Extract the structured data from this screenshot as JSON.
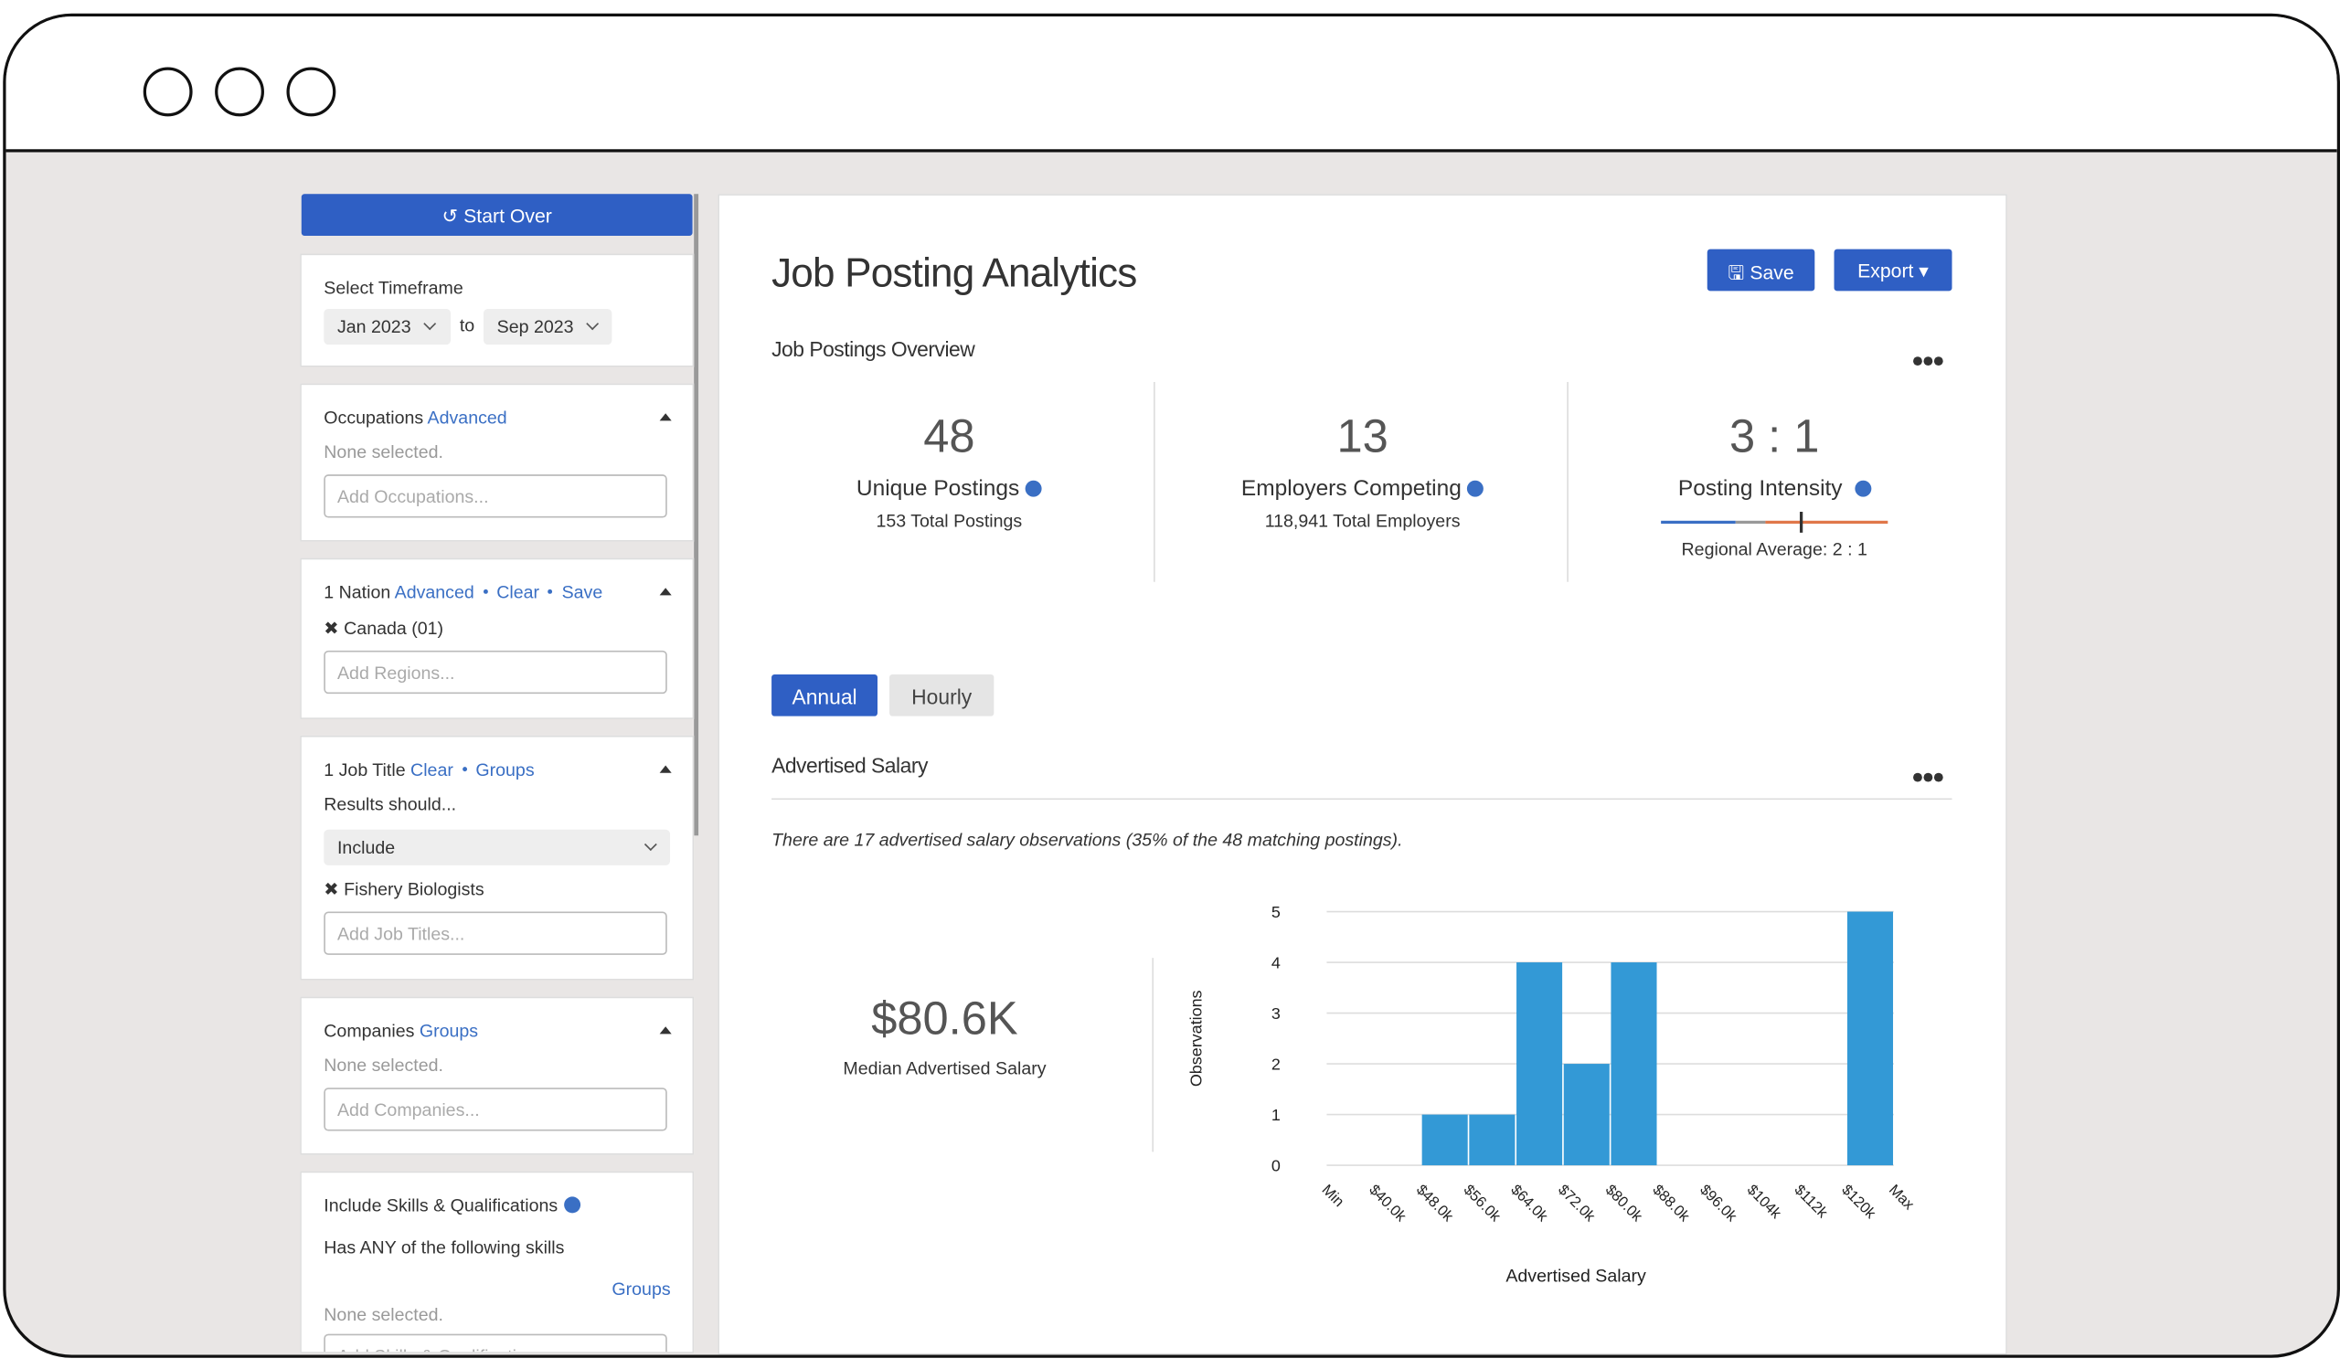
{
  "sidebar": {
    "start_over": "Start Over",
    "timeframe": {
      "label": "Select Timeframe",
      "from": "Jan 2023",
      "to_word": "to",
      "to": "Sep 2023"
    },
    "occupations": {
      "title": "Occupations",
      "links": [
        "Advanced"
      ],
      "status": "None selected.",
      "placeholder": "Add Occupations..."
    },
    "nation": {
      "title": "1 Nation",
      "links": [
        "Advanced",
        "Clear",
        "Save"
      ],
      "item": "Canada (01)",
      "placeholder": "Add Regions..."
    },
    "job_title": {
      "title": "1 Job Title",
      "links": [
        "Clear",
        "Groups"
      ],
      "hint": "Results should...",
      "select": "Include",
      "item": "Fishery Biologists",
      "placeholder": "Add Job Titles..."
    },
    "companies": {
      "title": "Companies",
      "links": [
        "Groups"
      ],
      "status": "None selected.",
      "placeholder": "Add Companies..."
    },
    "skills": {
      "title": "Include Skills & Qualifications",
      "hint": "Has ANY of the following skills",
      "link": "Groups",
      "status": "None selected.",
      "placeholder": "Add Skills & Qualifications..."
    }
  },
  "main": {
    "title": "Job Posting Analytics",
    "buttons": [
      "Save",
      "Export"
    ],
    "overview_title": "Job Postings Overview",
    "stats": [
      {
        "value": 48,
        "label": "Unique Postings",
        "sub": "153 Total Postings"
      },
      {
        "value": 13,
        "label": "Employers Competing",
        "sub": "118,941 Total Employers"
      },
      {
        "value": "3 : 1",
        "label": "Posting Intensity",
        "sub": "Regional Average: 2 : 1"
      }
    ],
    "tabs": [
      "Annual",
      "Hourly"
    ],
    "salary_title": "Advertised Salary",
    "note": "There are 17 advertised salary observations (35% of the 48 matching postings).",
    "median": "$80.6K",
    "median_label": "Median Advertised Salary"
  },
  "chart_data": {
    "type": "histogram",
    "xlabel": "Advertised Salary",
    "ylabel": "Observations",
    "bins": [
      "Min",
      "$40.0k",
      "$48.0k",
      "$56.0k",
      "$64.0k",
      "$72.0k",
      "$80.0k",
      "$88.0k",
      "$96.0k",
      "$104k",
      "$112k",
      "$120k",
      "Max"
    ],
    "values": [
      0,
      0,
      1,
      1,
      4,
      2,
      4,
      0,
      0,
      0,
      0,
      5
    ],
    "color": "#3399d6",
    "ylim": [
      0,
      5
    ],
    "yticks": [
      0,
      1,
      2,
      3,
      4,
      5
    ],
    "grid": true
  }
}
